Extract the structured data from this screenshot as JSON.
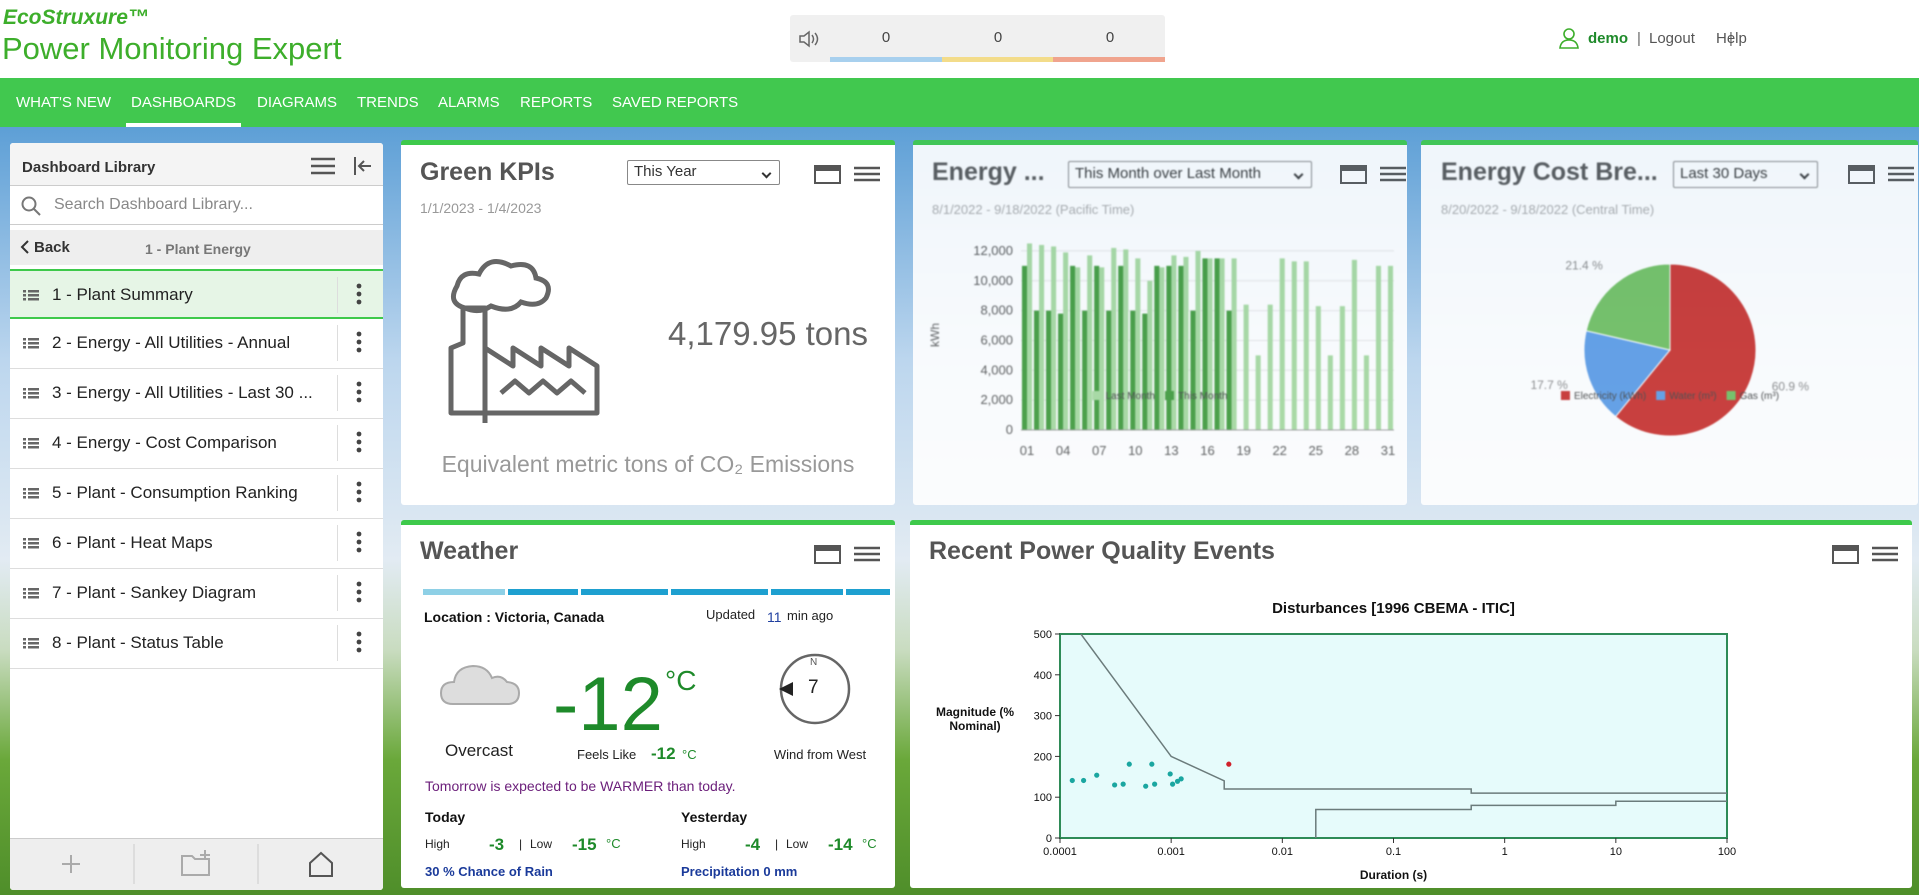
{
  "header": {
    "logo": "EcoStruxure™",
    "title": "Power Monitoring Expert",
    "alarm_counts": [
      0,
      0,
      0
    ],
    "user": "demo",
    "logout": "Logout",
    "help": "Help"
  },
  "nav": {
    "items": [
      "WHAT'S NEW",
      "DASHBOARDS",
      "DIAGRAMS",
      "TRENDS",
      "ALARMS",
      "REPORTS",
      "SAVED REPORTS"
    ],
    "active": 1
  },
  "library": {
    "title": "Dashboard Library",
    "search_placeholder": "Search Dashboard Library...",
    "back": "Back",
    "folder": "1 - Plant Energy",
    "items": [
      "1 - Plant Summary",
      "2 - Energy - All Utilities - Annual",
      "3 - Energy - All Utilities - Last 30 ...",
      "4 - Energy - Cost Comparison",
      "5 - Plant - Consumption Ranking",
      "6 - Plant - Heat Maps",
      "7 - Plant - Sankey Diagram",
      "8 - Plant - Status Table"
    ],
    "selected": 0
  },
  "widgets": {
    "green_kpis": {
      "title": "Green KPIs",
      "period": "This Year",
      "date_range": "1/1/2023 - 1/4/2023",
      "value": "4,179.95 tons",
      "caption": "Equivalent metric tons of CO₂ Emissions"
    },
    "energy": {
      "title": "Energy ...",
      "period": "This Month over Last Month",
      "date_range": "8/1/2022 - 9/18/2022 (Pacific Time)"
    },
    "energy_cost": {
      "title": "Energy Cost Bre...",
      "period": "Last 30 Days",
      "date_range": "8/20/2022 - 9/18/2022 (Central Time)"
    },
    "weather": {
      "title": "Weather",
      "location": "Location : Victoria, Canada",
      "updated": "Updated",
      "updated_minutes": 11,
      "updated_suffix": "min ago",
      "condition": "Overcast",
      "temperature": -12,
      "unit": "°C",
      "feels_like_label": "Feels Like",
      "feels_like": -12,
      "wind_north": "N",
      "wind_speed": 7,
      "wind_text": "Wind from West",
      "forecast": "Tomorrow is expected to be WARMER than today.",
      "today": "Today",
      "yesterday": "Yesterday",
      "high_label": "High",
      "low_label": "Low",
      "separator": "|",
      "today_high": -3,
      "today_low": -15,
      "yesterday_high": -4,
      "yesterday_low": -14,
      "rain": "30 % Chance of Rain",
      "precipitation": "Precipitation 0 mm"
    },
    "power_quality": {
      "title": "Recent Power Quality Events"
    }
  },
  "chart_data": [
    {
      "type": "bar",
      "ylabel": "kWh",
      "categories": [
        "01",
        null,
        null,
        "04",
        null,
        null,
        "07",
        null,
        null,
        "10",
        null,
        null,
        "13",
        null,
        null,
        "16",
        null,
        null,
        "19",
        null,
        null,
        "22",
        null,
        null,
        "25",
        null,
        null,
        "28",
        null,
        null,
        "31"
      ],
      "series": [
        {
          "name": "Last Month",
          "color": "#a6d99f",
          "values": [
            12500,
            12400,
            12300,
            11900,
            10900,
            11700,
            10900,
            12200,
            12100,
            11500,
            10000,
            10900,
            11700,
            11600,
            12000,
            11500,
            11500,
            11500,
            8400,
            5000,
            8400,
            11500,
            11300,
            11300,
            8300,
            5000,
            8300,
            11400,
            5000,
            11000,
            11000
          ]
        },
        {
          "name": "This Month",
          "color": "#3f9a3a",
          "values": [
            11000,
            8000,
            8000,
            7800,
            11000,
            8000,
            11000,
            8000,
            11000,
            8000,
            7800,
            11000,
            11000,
            11000,
            8000,
            11500,
            11500,
            8000,
            null,
            null,
            null,
            null,
            null,
            null,
            null,
            null,
            null,
            null,
            null,
            null,
            null
          ]
        }
      ],
      "ylim": [
        0,
        13000
      ],
      "yticks": [
        0,
        {
          "value": 2000,
          "label": "2,000"
        },
        {
          "value": 4000,
          "label": "4,000"
        },
        {
          "value": 6000,
          "label": "6,000"
        },
        {
          "value": 8000,
          "label": "8,000"
        },
        {
          "value": 10000,
          "label": "10,000"
        },
        {
          "value": 12000,
          "label": "12,000"
        }
      ],
      "grid": true
    },
    {
      "type": "pie",
      "categories": [
        "Electricity (kWh)",
        "Water (m³)",
        "Gas (m³)"
      ],
      "values": [
        60.9,
        17.7,
        21.4
      ],
      "value_labels": [
        "60.9 %",
        "17.7 %",
        "21.4 %"
      ],
      "colors": [
        "#c9302c",
        "#5b9be6",
        "#6fbf5f"
      ]
    },
    {
      "type": "scatter",
      "title": "Disturbances [1996 CBEMA - ITIC]",
      "xlabel": "Duration (s)",
      "ylabel": "Magnitude (% Nominal)",
      "xscale": "log",
      "xlim": [
        0.0001,
        100
      ],
      "ylim": [
        0,
        500
      ],
      "xticks": [
        0.0001,
        0.001,
        0.01,
        0.1,
        1,
        10,
        100
      ],
      "yticks": [
        0,
        100,
        200,
        300,
        400,
        500
      ],
      "grid": false,
      "series": [
        {
          "color": "#1aa6a0",
          "x": [
            0.000129,
            0.000163,
            0.000214,
            0.00031,
            0.00042,
            0.00037,
            0.00059,
            0.00067,
            0.00071,
            0.00098,
            0.00103,
            0.00114,
            0.00123
          ],
          "values": [
            141,
            141,
            154,
            130,
            181,
            132,
            127,
            181,
            132,
            157,
            132,
            139,
            145
          ]
        },
        {
          "color": "#d0202a",
          "x": [
            0.0033
          ],
          "values": [
            181
          ]
        }
      ],
      "curves": [
        {
          "color": "#6b7b7b",
          "x": [
            0.000154,
            0.001,
            0.003,
            0.003,
            0.5,
            0.5,
            100
          ],
          "values": [
            500,
            200,
            140,
            120,
            120,
            110,
            110
          ]
        },
        {
          "color": "#6b7b7b",
          "x": [
            0.02,
            0.02,
            0.5,
            0.5,
            10,
            10,
            100
          ],
          "values": [
            0,
            70,
            70,
            80,
            80,
            90,
            90
          ]
        }
      ]
    }
  ]
}
